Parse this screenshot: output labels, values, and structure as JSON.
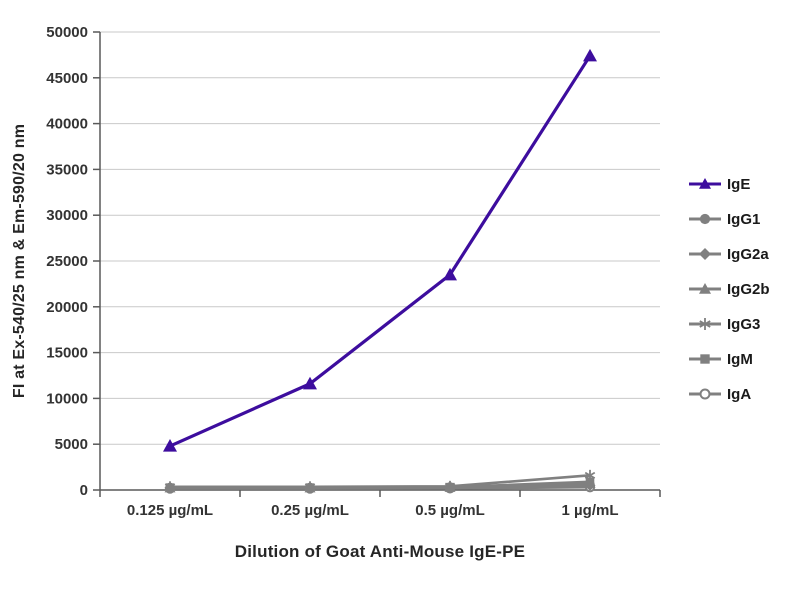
{
  "chart_data": {
    "type": "line",
    "title": "",
    "xlabel": "Dilution of Goat Anti-Mouse IgE-PE",
    "ylabel": "FI at Ex-540/25 nm & Em-590/20 nm",
    "categories": [
      "0.125 µg/mL",
      "0.25 µg/mL",
      "0.5 µg/mL",
      "1 µg/mL"
    ],
    "series": [
      {
        "name": "IgE",
        "marker": "triangle",
        "color": "#3d0d9e",
        "values": [
          4800,
          11600,
          23500,
          47400
        ]
      },
      {
        "name": "IgG1",
        "marker": "circle",
        "color": "#808080",
        "values": [
          300,
          300,
          350,
          600
        ]
      },
      {
        "name": "IgG2a",
        "marker": "diamond",
        "color": "#808080",
        "values": [
          250,
          250,
          300,
          500
        ]
      },
      {
        "name": "IgG2b",
        "marker": "triangle",
        "color": "#808080",
        "values": [
          220,
          220,
          270,
          700
        ]
      },
      {
        "name": "IgG3",
        "marker": "asterisk",
        "color": "#808080",
        "values": [
          350,
          350,
          400,
          1600
        ]
      },
      {
        "name": "IgM",
        "marker": "square",
        "color": "#808080",
        "values": [
          260,
          260,
          310,
          900
        ]
      },
      {
        "name": "IgA",
        "marker": "open-circle",
        "color": "#808080",
        "values": [
          150,
          150,
          180,
          300
        ]
      }
    ],
    "ylim": [
      0,
      50000
    ],
    "ytick_step": 5000,
    "grid": true,
    "legend_position": "right",
    "colors": {
      "accent_series": "#3d0d9e",
      "other_series": "#808080",
      "gridline": "#c9c9c9",
      "axis": "#595959",
      "text": "#333333"
    }
  }
}
